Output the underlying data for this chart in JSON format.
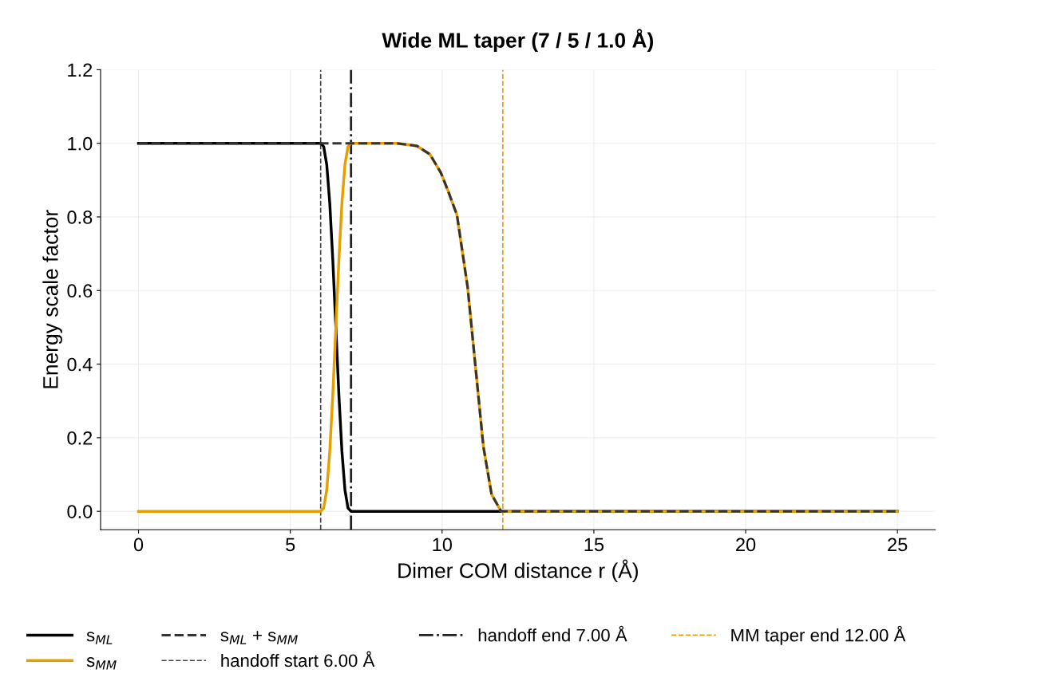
{
  "chart_data": {
    "type": "line",
    "title": "Wide ML taper (7 / 5 / 1.0 Å)",
    "xlabel": "Dimer COM distance r (Å)",
    "ylabel": "Energy scale factor",
    "series": [
      {
        "name": "s$_{ML}$",
        "color": "#000000",
        "line_style": "solid",
        "x": [
          0,
          6.0,
          6.1,
          6.2,
          6.3,
          6.4,
          6.5,
          6.6,
          6.7,
          6.8,
          6.9,
          7.0,
          25
        ],
        "values": [
          1,
          1,
          0.991,
          0.942,
          0.837,
          0.683,
          0.5,
          0.317,
          0.163,
          0.058,
          0.009,
          0,
          0
        ]
      },
      {
        "name": "s$_{MM}$",
        "color": "#e69f00",
        "line_style": "solid",
        "x": [
          0,
          6.0,
          6.1,
          6.2,
          6.3,
          6.4,
          6.5,
          6.6,
          6.7,
          6.8,
          6.9,
          7.0,
          8.5,
          9.17,
          9.6,
          9.96,
          10.2,
          10.49,
          10.84,
          11.1,
          11.36,
          11.63,
          11.93,
          12.0,
          25
        ],
        "values": [
          0,
          0,
          0.009,
          0.058,
          0.163,
          0.317,
          0.5,
          0.683,
          0.837,
          0.942,
          0.991,
          1,
          1,
          0.993,
          0.97,
          0.92,
          0.87,
          0.805,
          0.61,
          0.393,
          0.176,
          0.046,
          0.002,
          0,
          0
        ]
      },
      {
        "name": "s$_{ML}$ + s$_{MM}$",
        "color": "#333333",
        "line_style": "dashed",
        "x": [
          0,
          7.0,
          8.5,
          9.17,
          9.6,
          9.96,
          10.2,
          10.49,
          10.84,
          11.1,
          11.36,
          11.63,
          11.93,
          12.0,
          25
        ],
        "values": [
          1,
          1,
          1,
          0.993,
          0.97,
          0.92,
          0.87,
          0.805,
          0.61,
          0.393,
          0.176,
          0.046,
          0.002,
          0,
          0
        ]
      }
    ],
    "ref_lines": [
      {
        "axis": "x",
        "value": 6.0,
        "label": "handoff start 6.00 Å",
        "color": "#444444",
        "line_style": "dashed"
      },
      {
        "axis": "x",
        "value": 7.0,
        "label": "handoff end 7.00 Å",
        "color": "#222222",
        "line_style": "dashdot"
      },
      {
        "axis": "x",
        "value": 12.0,
        "label": "MM taper end 12.00 Å",
        "color": "#e69f00",
        "line_style": "dashed"
      }
    ],
    "xlim": [
      -1.25,
      26.25
    ],
    "xticks": [
      0,
      5,
      10,
      15,
      20,
      25
    ],
    "ylim": [
      -0.05,
      1.2
    ],
    "yticks": [
      {
        "value": 0,
        "label": "0.0"
      },
      {
        "value": 0.2,
        "label": "0.2"
      },
      {
        "value": 0.4,
        "label": "0.4"
      },
      {
        "value": 0.6,
        "label": "0.6"
      },
      {
        "value": 0.8,
        "label": "0.8"
      },
      {
        "value": 1.0,
        "label": "1.0"
      },
      {
        "value": 1.2,
        "label": "1.2"
      }
    ],
    "grid": true,
    "legend": "bottom"
  }
}
